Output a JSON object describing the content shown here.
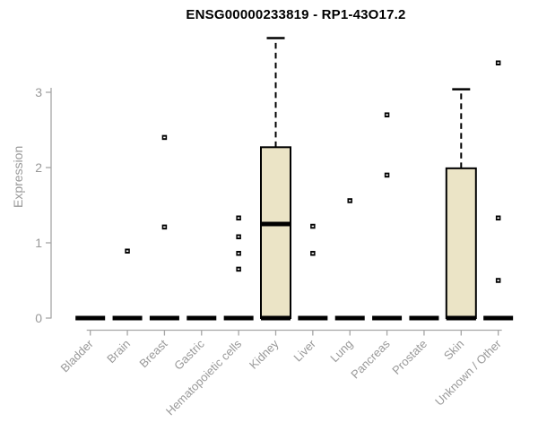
{
  "chart_data": {
    "type": "boxplot",
    "title": "ENSG00000233819 - RP1-43O17.2",
    "ylabel": "Expression",
    "xlabel": "",
    "yticks": [
      0,
      1,
      2,
      3
    ],
    "ylim": [
      0,
      3.85
    ],
    "grid": false,
    "legend": "none",
    "categories": [
      "Bladder",
      "Brain",
      "Breast",
      "Gastric",
      "Hematopoietic cells",
      "Kidney",
      "Liver",
      "Lung",
      "Pancreas",
      "Prostate",
      "Skin",
      "Unknown / Other"
    ],
    "boxes": [
      {
        "category": "Bladder",
        "median": 0,
        "q1": 0,
        "q3": 0,
        "whisker_low": 0,
        "whisker_high": 0,
        "outliers": []
      },
      {
        "category": "Brain",
        "median": 0,
        "q1": 0,
        "q3": 0,
        "whisker_low": 0,
        "whisker_high": 0,
        "outliers": [
          0.89
        ]
      },
      {
        "category": "Breast",
        "median": 0,
        "q1": 0,
        "q3": 0,
        "whisker_low": 0,
        "whisker_high": 0,
        "outliers": [
          2.4,
          1.21
        ]
      },
      {
        "category": "Gastric",
        "median": 0,
        "q1": 0,
        "q3": 0,
        "whisker_low": 0,
        "whisker_high": 0,
        "outliers": []
      },
      {
        "category": "Hematopoietic cells",
        "median": 0,
        "q1": 0,
        "q3": 0,
        "whisker_low": 0,
        "whisker_high": 0,
        "outliers": [
          1.33,
          1.08,
          0.86,
          0.65
        ]
      },
      {
        "category": "Kidney",
        "median": 1.25,
        "q1": 0,
        "q3": 2.27,
        "whisker_low": 0,
        "whisker_high": 3.72,
        "outliers": []
      },
      {
        "category": "Liver",
        "median": 0,
        "q1": 0,
        "q3": 0,
        "whisker_low": 0,
        "whisker_high": 0,
        "outliers": [
          1.22,
          0.86
        ]
      },
      {
        "category": "Lung",
        "median": 0,
        "q1": 0,
        "q3": 0,
        "whisker_low": 0,
        "whisker_high": 0,
        "outliers": [
          1.56
        ]
      },
      {
        "category": "Pancreas",
        "median": 0,
        "q1": 0,
        "q3": 0,
        "whisker_low": 0,
        "whisker_high": 0,
        "outliers": [
          2.7,
          1.9
        ]
      },
      {
        "category": "Prostate",
        "median": 0,
        "q1": 0,
        "q3": 0,
        "whisker_low": 0,
        "whisker_high": 0,
        "outliers": []
      },
      {
        "category": "Skin",
        "median": 0,
        "q1": 0,
        "q3": 1.99,
        "whisker_low": 0,
        "whisker_high": 3.04,
        "outliers": []
      },
      {
        "category": "Unknown / Other",
        "median": 0,
        "q1": 0,
        "q3": 0,
        "whisker_low": 0,
        "whisker_high": 0,
        "outliers": [
          3.39,
          1.33,
          0.5
        ]
      }
    ],
    "colors": {
      "box_fill": "#ebe4c6",
      "box_stroke": "#000000",
      "median": "#000000",
      "outlier": "#000000",
      "axis": "#a6a6a6",
      "tick_label": "#999999",
      "title": "#000000",
      "background": "#ffffff"
    }
  }
}
